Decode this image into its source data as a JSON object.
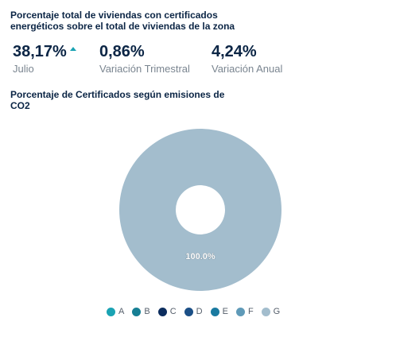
{
  "header": {
    "title": "Porcentaje total de viviendas con certificados energéticos sobre el total de viviendas de la zona"
  },
  "stats": [
    {
      "value": "38,17%",
      "label": "Julio",
      "trend": "up"
    },
    {
      "value": "0,86%",
      "label": "Variación Trimestral"
    },
    {
      "value": "4,24%",
      "label": "Variación Anual"
    }
  ],
  "chart_data": {
    "type": "pie",
    "title": "Porcentaje de Certificados según emisiones de CO2",
    "categories": [
      "A",
      "B",
      "C",
      "D",
      "E",
      "F",
      "G"
    ],
    "values": [
      0,
      0,
      0,
      0,
      0,
      0,
      100.0
    ],
    "data_labels": [
      "",
      "",
      "",
      "",
      "",
      "",
      "100.0%"
    ],
    "colors": [
      "#1aa3b3",
      "#167f94",
      "#0c2d5e",
      "#1b4f86",
      "#1a7aa0",
      "#5f9ab8",
      "#a3bdcd"
    ],
    "donut": true,
    "legend_position": "bottom"
  }
}
